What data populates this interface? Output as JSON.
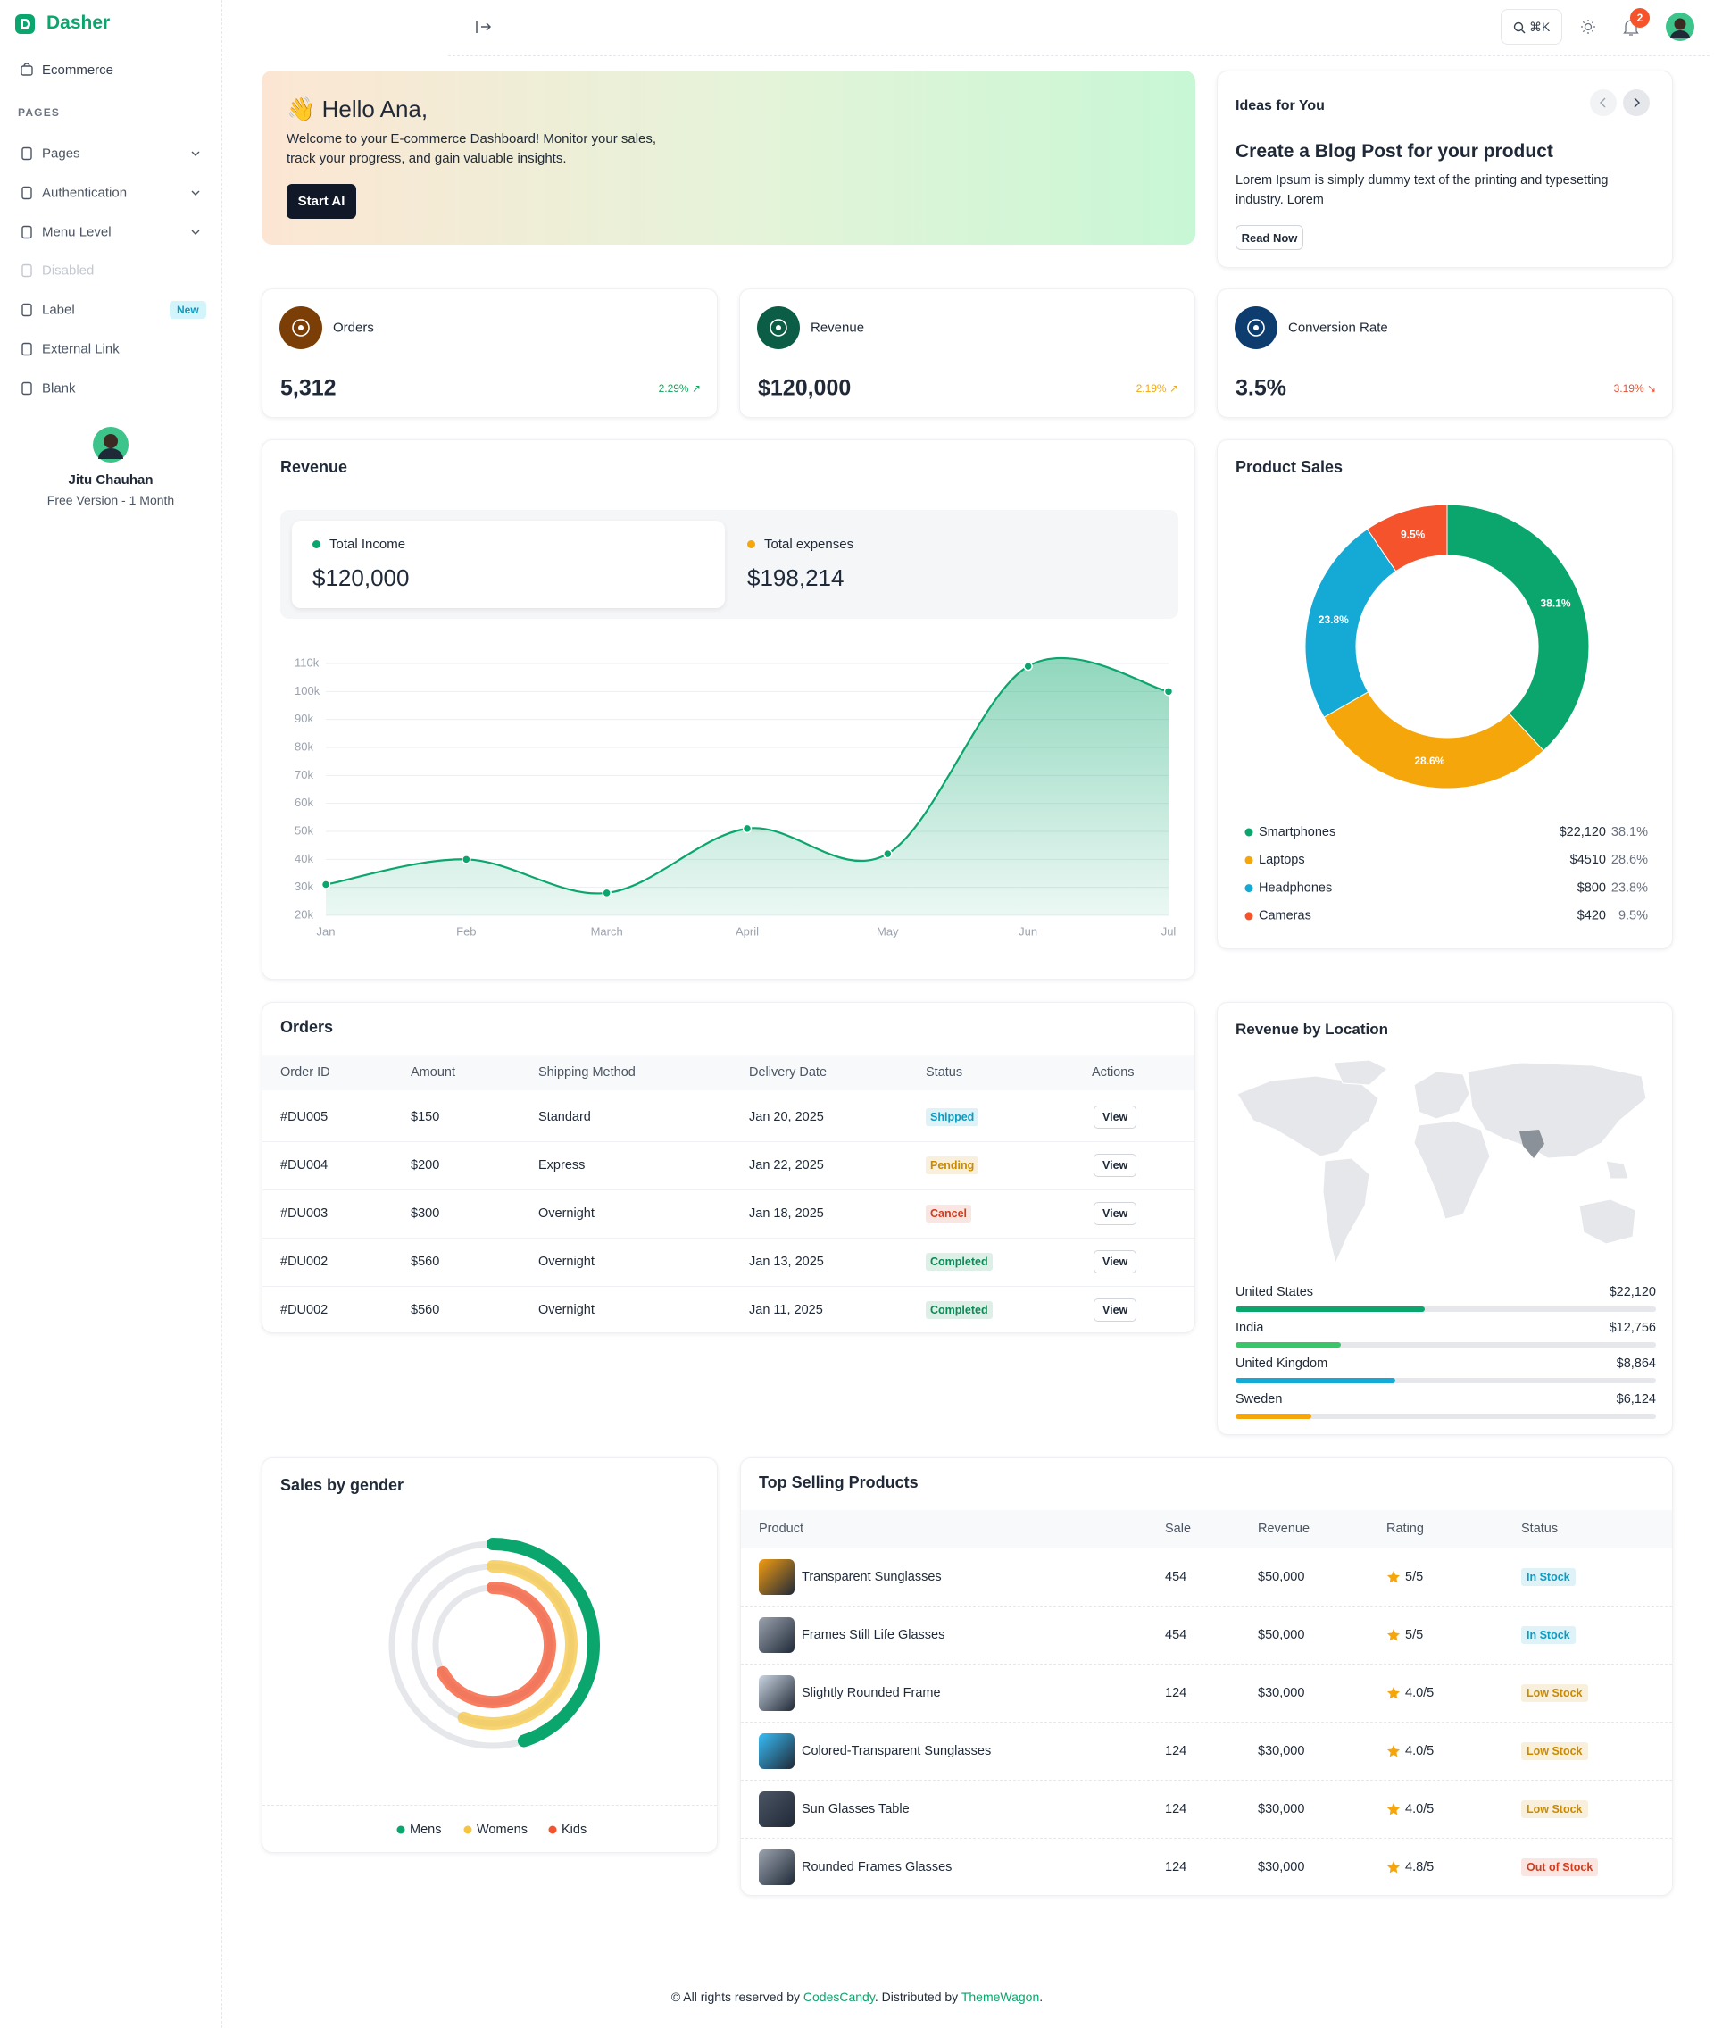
{
  "sidebar": {
    "brand": "Dasher",
    "top": "Ecommerce",
    "section": "PAGES",
    "nav": [
      {
        "label": "Pages",
        "has_submenu": true
      },
      {
        "label": "Authentication",
        "has_submenu": true
      },
      {
        "label": "Menu Level",
        "has_submenu": true
      },
      {
        "label": "Disabled",
        "disabled": true
      },
      {
        "label": "Label",
        "badge": "New"
      },
      {
        "label": "External Link"
      },
      {
        "label": "Blank"
      }
    ],
    "user": {
      "name": "Jitu Chauhan",
      "plan": "Free Version - 1 Month"
    }
  },
  "header": {
    "shortcut": "⌘K",
    "notifications": "2"
  },
  "hero": {
    "title": "👋 Hello Ana,",
    "text": "Welcome to your E-commerce Dashboard! Monitor your sales, track your progress, and gain valuable insights.",
    "button": "Start AI"
  },
  "ideas": {
    "heading": "Ideas for You",
    "title": "Create a Blog Post for your product",
    "text": "Lorem Ipsum is simply dummy text of the printing and typesetting industry. Lorem",
    "button": "Read Now"
  },
  "stats": [
    {
      "label": "Orders",
      "value": "5,312",
      "change": "2.29% ↗",
      "color": "#7a3e06",
      "change_color": "#12a35c"
    },
    {
      "label": "Revenue",
      "value": "$120,000",
      "change": "2.19% ↗",
      "color": "#0b5d45",
      "change_color": "#f5a60a"
    },
    {
      "label": "Conversion Rate",
      "value": "3.5%",
      "change": "3.19% ↘",
      "color": "#0d3c6e",
      "change_color": "#ef4b2b"
    }
  ],
  "revenue_summary": {
    "income_label": "Total Income",
    "income": "$120,000",
    "expenses_label": "Total expenses",
    "expenses": "$198,214"
  },
  "orders": {
    "title": "Orders",
    "columns": [
      "Order ID",
      "Amount",
      "Shipping Method",
      "Delivery Date",
      "Status",
      "Actions"
    ],
    "action": "View",
    "rows": [
      {
        "id": "#DU005",
        "amount": "$150",
        "method": "Standard",
        "date": "Jan 20, 2025",
        "status": "Shipped",
        "status_color": "#0a9cc2"
      },
      {
        "id": "#DU004",
        "amount": "$200",
        "method": "Express",
        "date": "Jan 22, 2025",
        "status": "Pending",
        "status_color": "#c98a00"
      },
      {
        "id": "#DU003",
        "amount": "$300",
        "method": "Overnight",
        "date": "Jan 18, 2025",
        "status": "Cancel",
        "status_color": "#d23b1c"
      },
      {
        "id": "#DU002",
        "amount": "$560",
        "method": "Overnight",
        "date": "Jan 13, 2025",
        "status": "Completed",
        "status_color": "#0a8a55"
      },
      {
        "id": "#DU002",
        "amount": "$560",
        "method": "Overnight",
        "date": "Jan 11, 2025",
        "status": "Completed",
        "status_color": "#0a8a55"
      }
    ]
  },
  "location": {
    "title": "Revenue by Location",
    "rows": [
      {
        "country": "United States",
        "amount": "$22,120",
        "progress": 45,
        "color": "#0aa66e"
      },
      {
        "country": "India",
        "amount": "$12,756",
        "progress": 25,
        "color": "#3cc46a"
      },
      {
        "country": "United Kingdom",
        "amount": "$8,864",
        "progress": 38,
        "color": "#15aad6"
      },
      {
        "country": "Sweden",
        "amount": "$6,124",
        "progress": 18,
        "color": "#f5a60a"
      }
    ]
  },
  "top_selling": {
    "title": "Top Selling Products",
    "columns": [
      "Product",
      "Sale",
      "Revenue",
      "Rating",
      "Status"
    ],
    "rows": [
      {
        "product": "Transparent Sunglasses",
        "sale": 454,
        "revenue": "$50,000",
        "rating": "5/5",
        "status": "In Stock",
        "status_color": "#0a9cc2"
      },
      {
        "product": "Frames Still Life Glasses",
        "sale": 454,
        "revenue": "$50,000",
        "rating": "5/5",
        "status": "In Stock",
        "status_color": "#0a9cc2"
      },
      {
        "product": "Slightly Rounded Frame",
        "sale": 124,
        "revenue": "$30,000",
        "rating": "4.0/5",
        "status": "Low Stock",
        "status_color": "#c98a00"
      },
      {
        "product": "Colored-Transparent Sunglasses",
        "sale": 124,
        "revenue": "$30,000",
        "rating": "4.0/5",
        "status": "Low Stock",
        "status_color": "#c98a00"
      },
      {
        "product": "Sun Glasses Table",
        "sale": 124,
        "revenue": "$30,000",
        "rating": "4.0/5",
        "status": "Low Stock",
        "status_color": "#c98a00"
      },
      {
        "product": "Rounded Frames Glasses",
        "sale": 124,
        "revenue": "$30,000",
        "rating": "4.8/5",
        "status": "Out of Stock",
        "status_color": "#d23b1c"
      }
    ]
  },
  "footer": {
    "prefix": "© All rights reserved by ",
    "link1": "CodesCandy",
    "middle": ". Distributed by ",
    "link2": "ThemeWagon",
    "end": "."
  },
  "chart_data": [
    {
      "type": "line",
      "title": "Revenue",
      "categories": [
        "Jan",
        "Feb",
        "March",
        "April",
        "May",
        "Jun",
        "Jul"
      ],
      "values": [
        31,
        40,
        28,
        51,
        42,
        109,
        100
      ],
      "color": "#0aa66e",
      "ylim": [
        20,
        110
      ],
      "yticks": [
        {
          "value": 20,
          "label": "20k"
        },
        {
          "value": 30,
          "label": "30k"
        },
        {
          "value": 40,
          "label": "40k"
        },
        {
          "value": 50,
          "label": "50k"
        },
        {
          "value": 60,
          "label": "60k"
        },
        {
          "value": 70,
          "label": "70k"
        },
        {
          "value": 80,
          "label": "80k"
        },
        {
          "value": 90,
          "label": "90k"
        },
        {
          "value": 100,
          "label": "100k"
        },
        {
          "value": 110,
          "label": "110k"
        }
      ],
      "grid": true
    },
    {
      "type": "pie",
      "title": "Product Sales",
      "categories": [
        "Smartphones",
        "Laptops",
        "Headphones",
        "Cameras"
      ],
      "values": [
        38.1,
        28.6,
        23.8,
        9.5
      ],
      "value_labels": [
        "38.1%",
        "28.6%",
        "23.8%",
        "9.5%"
      ],
      "amounts": [
        "$22,120",
        "$4510",
        "$800",
        "$420"
      ],
      "colors": [
        "#0aa66e",
        "#f5a60a",
        "#15aad6",
        "#f4532c"
      ]
    },
    {
      "type": "radial",
      "title": "Sales by gender",
      "categories": [
        "Mens",
        "Womens",
        "Kids"
      ],
      "values": [
        45,
        56,
        67
      ],
      "ylim": [
        0,
        100
      ],
      "colors": [
        "#0aa66e",
        "#f5c542",
        "#f4532c"
      ]
    }
  ]
}
